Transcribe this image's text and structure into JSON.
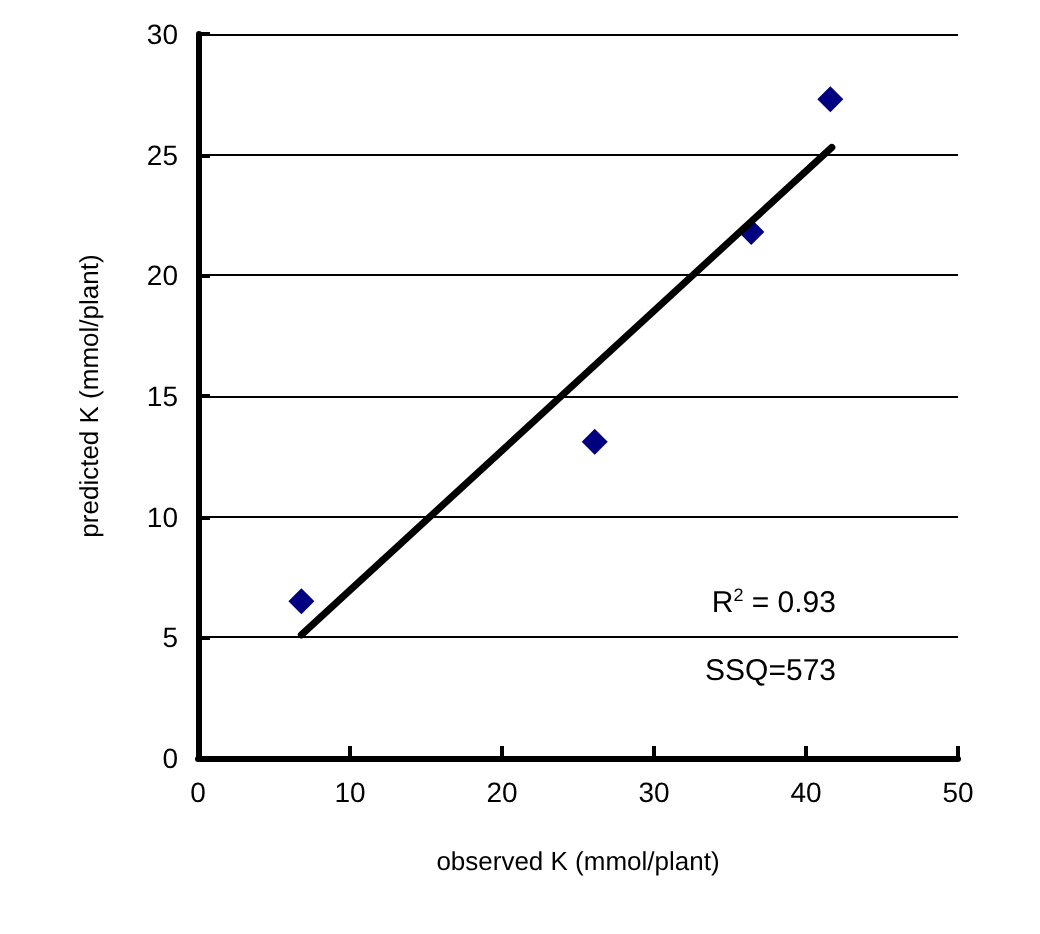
{
  "chart_data": {
    "type": "scatter",
    "xlabel": "observed K (mmol/plant)",
    "ylabel": "predicted K (mmol/plant)",
    "series": [
      {
        "color": "#000080",
        "marker": "diamond",
        "x": [
          6.8,
          26.1,
          36.4,
          41.6
        ],
        "values": [
          6.5,
          13.1,
          21.8,
          27.3
        ]
      },
      {
        "type": "line",
        "color": "#000000",
        "marker": "none",
        "line_style": "solid",
        "x": [
          6.8,
          41.7
        ],
        "values": [
          5.1,
          25.3
        ]
      }
    ],
    "xlim": [
      0,
      50
    ],
    "xticks": [
      0,
      10,
      20,
      30,
      40,
      50
    ],
    "ylim": [
      0,
      30
    ],
    "yticks": [
      0,
      5,
      10,
      15,
      20,
      25,
      30
    ],
    "grid": "y",
    "annotations": [
      "R$^{2}$ = 0.93",
      "SSQ=573"
    ]
  }
}
